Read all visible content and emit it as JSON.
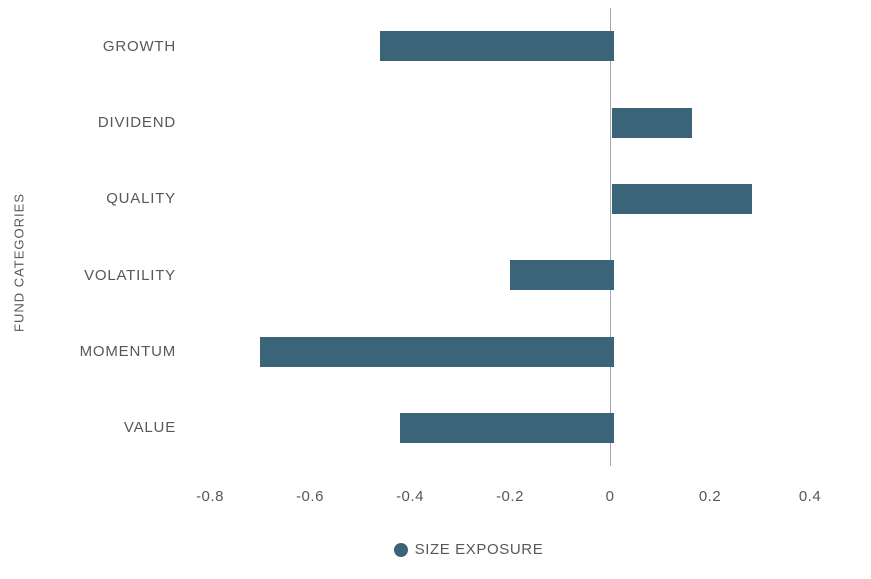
{
  "chart_data": {
    "type": "bar",
    "orientation": "horizontal",
    "title": "",
    "categories": [
      "GROWTH",
      "DIVIDEND",
      "QUALITY",
      "VOLATILITY",
      "MOMENTUM",
      "VALUE"
    ],
    "series": [
      {
        "name": "SIZE EXPOSURE",
        "values": [
          -0.46,
          0.16,
          0.28,
          -0.2,
          -0.7,
          -0.42
        ]
      }
    ],
    "xlabel": "",
    "ylabel": "FUND CATEGORIES",
    "xlim": [
      -0.86,
      0.5
    ],
    "x_ticks": [
      -0.8,
      -0.6,
      -0.4,
      -0.2,
      0,
      0.2,
      0.4
    ],
    "x_tick_labels": [
      "-0.8",
      "-0.6",
      "-0.4",
      "-0.2",
      "0",
      "0.2",
      "0.4"
    ],
    "grid": false,
    "legend_position": "bottom"
  },
  "legend": {
    "label": "SIZE EXPOSURE"
  },
  "axis": {
    "y_title": "FUND CATEGORIES"
  },
  "colors": {
    "bar": "#3b6478",
    "axis_line": "#a3a9ad",
    "text": "#55585c",
    "background": "#ffffff"
  }
}
